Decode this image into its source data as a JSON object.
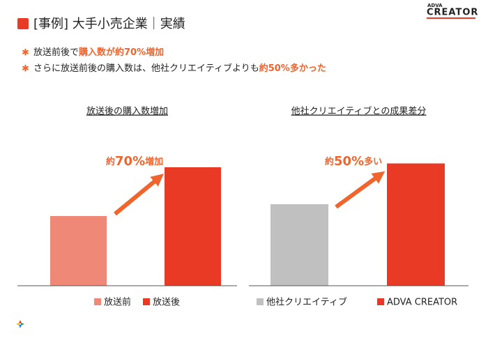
{
  "header": {
    "title": "[事例] 大手小売企業｜実績",
    "logo": {
      "small": "ADVA",
      "big": "CREATOR"
    }
  },
  "bullets": [
    [
      {
        "text": "放送前後で"
      },
      {
        "text": "購入数が約70%増加",
        "highlight": true
      }
    ],
    [
      {
        "text": "さらに放送前後の購入数は、他社クリエイティブよりも"
      },
      {
        "text": "約50%多かった",
        "highlight": true
      }
    ]
  ],
  "chart_data": [
    {
      "type": "bar",
      "title": "放送後の購入数増加",
      "categories": [
        "放送前",
        "放送後"
      ],
      "values": [
        100,
        170
      ],
      "colors": [
        "#f08878",
        "#e83a25"
      ],
      "annotation": [
        "約",
        "70%",
        "増加"
      ]
    },
    {
      "type": "bar",
      "title": "他社クリエイティブとの成果差分",
      "categories": [
        "他社クリエイティブ",
        "ADVA CREATOR"
      ],
      "values": [
        100,
        150
      ],
      "colors": [
        "#c0c0c0",
        "#e83a25"
      ],
      "annotation": [
        "約",
        "50%",
        "多い"
      ]
    }
  ]
}
